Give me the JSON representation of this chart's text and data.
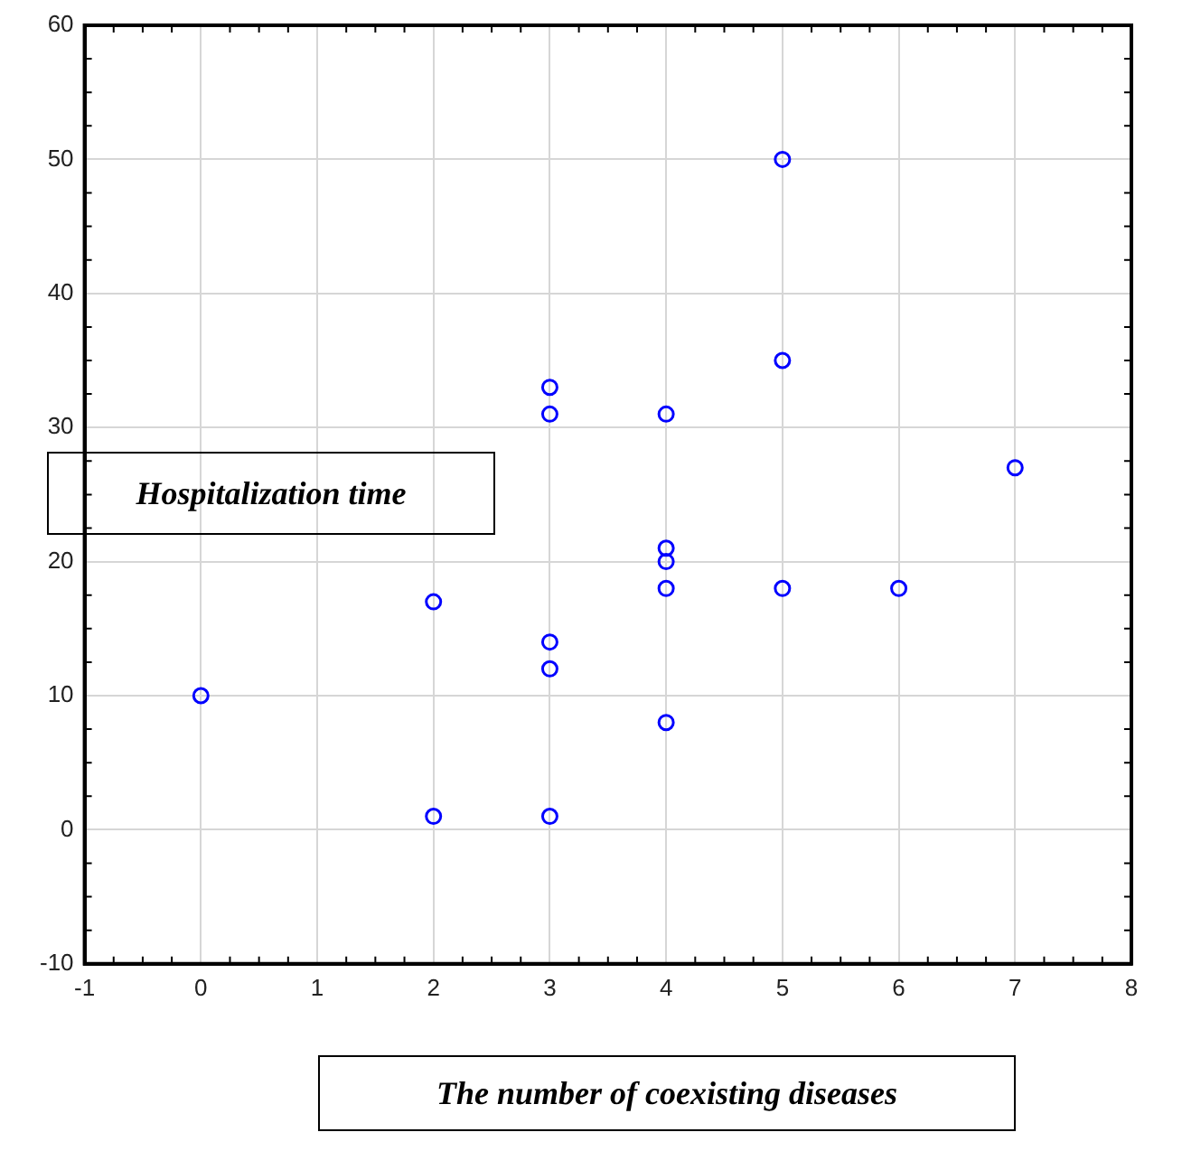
{
  "chart_data": {
    "type": "scatter",
    "xlabel": "The number of coexisting diseases",
    "ylabel": "Hospitalization time",
    "series": [
      {
        "color": "#0000ff",
        "x": [
          0,
          2,
          2,
          3,
          3,
          3,
          3,
          3,
          4,
          4,
          4,
          4,
          4,
          5,
          5,
          5,
          6,
          7
        ],
        "values": [
          10,
          17,
          1,
          33,
          31,
          14,
          12,
          1,
          31,
          21,
          20,
          18,
          8,
          50,
          35,
          18,
          18,
          27
        ]
      }
    ],
    "xlim": [
      -1,
      8
    ],
    "xticks": [
      -1,
      0,
      1,
      2,
      3,
      4,
      5,
      6,
      7,
      8
    ],
    "ylim": [
      -10,
      60
    ],
    "yticks": [
      -10,
      0,
      10,
      20,
      30,
      40,
      50,
      60
    ],
    "grid": true,
    "legend": false,
    "marker": "circle"
  }
}
